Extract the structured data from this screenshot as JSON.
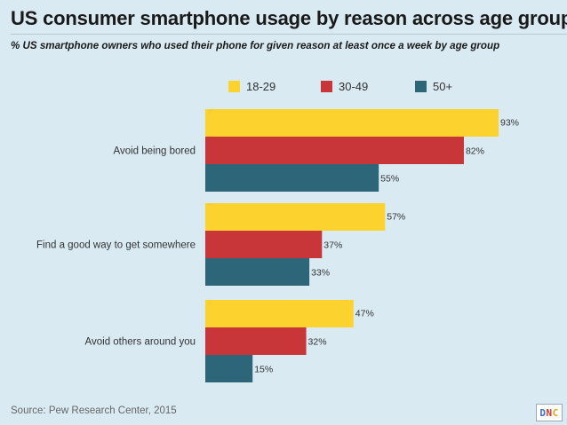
{
  "header": {
    "title": "US consumer smartphone usage by reason across age groups",
    "subtitle": "% US smartphone owners who used their phone for given reason at least once a week by age group"
  },
  "footer": {
    "source": "Source: Pew Research Center, 2015",
    "logo_letters": [
      "D",
      "N",
      "C"
    ]
  },
  "colors": {
    "background": "#d9eaf2",
    "series_18_29": "#fbd22e",
    "series_30_49": "#c9363a",
    "series_50_plus": "#2c6678"
  },
  "chart_data": {
    "type": "bar",
    "orientation": "horizontal",
    "title": "US consumer smartphone usage by reason across age groups",
    "xlabel": "",
    "ylabel": "",
    "xlim": [
      0,
      100
    ],
    "grid": false,
    "legend_position": "top",
    "categories": [
      "Avoid being bored",
      "Find a good way to get somewhere",
      "Avoid others around you"
    ],
    "series": [
      {
        "name": "18-29",
        "color": "#fbd22e",
        "values": [
          93,
          57,
          47
        ],
        "labels": [
          "93%",
          "57%",
          "47%"
        ]
      },
      {
        "name": "30-49",
        "color": "#c9363a",
        "values": [
          82,
          37,
          32
        ],
        "labels": [
          "82%",
          "37%",
          "32%"
        ]
      },
      {
        "name": "50+",
        "color": "#2c6678",
        "values": [
          55,
          33,
          15
        ],
        "labels": [
          "55%",
          "33%",
          "15%"
        ]
      }
    ]
  }
}
